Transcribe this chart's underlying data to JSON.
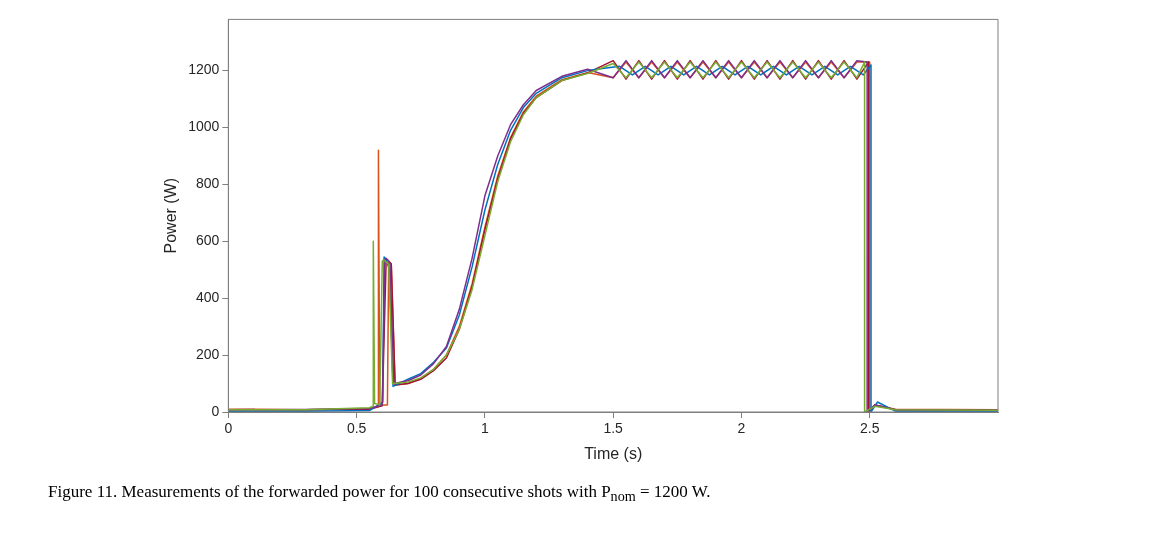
{
  "chart_data": {
    "type": "line",
    "xlabel": "Time (s)",
    "ylabel": "Power (W)",
    "xlim": [
      0,
      3
    ],
    "xticks": [
      0,
      0.5,
      1,
      1.5,
      2,
      2.5
    ],
    "ylim": [
      0,
      1380
    ],
    "yticks": [
      0,
      200,
      400,
      600,
      800,
      1000,
      1200
    ],
    "grid": false,
    "legend": false,
    "marker": "none",
    "line_style": "solid",
    "annotations": [
      "Figure 11. Measurements of the forwarded power for 100 consecutive shots with P$_{nom}$ = 1200 W."
    ],
    "series": [
      {
        "color": "#77ac30",
        "x": [
          0,
          0.3,
          0.55,
          0.565,
          0.565,
          0.57,
          0.59,
          0.6,
          0.605,
          0.625,
          0.64,
          0.7,
          0.75,
          0.8,
          0.85,
          0.9,
          0.95,
          1,
          1.05,
          1.1,
          1.15,
          1.2,
          1.3,
          1.4,
          1.5,
          1.55,
          1.6,
          1.65,
          1.7,
          1.75,
          1.8,
          1.85,
          1.9,
          1.95,
          2,
          2.05,
          2.1,
          2.15,
          2.2,
          2.25,
          2.3,
          2.35,
          2.4,
          2.45,
          2.48,
          2.48,
          2.52,
          2.6,
          3
        ],
        "values": [
          8,
          8,
          15,
          20,
          600,
          30,
          25,
          530,
          535,
          520,
          100,
          105,
          120,
          150,
          200,
          290,
          430,
          620,
          810,
          950,
          1045,
          1105,
          1165,
          1190,
          1225,
          1175,
          1230,
          1175,
          1230,
          1175,
          1230,
          1175,
          1230,
          1175,
          1230,
          1175,
          1230,
          1175,
          1230,
          1175,
          1230,
          1175,
          1230,
          1175,
          1230,
          0,
          20,
          8,
          6
        ]
      },
      {
        "color": "#7e2f8e",
        "x": [
          0,
          0.3,
          0.55,
          0.6,
          0.61,
          0.615,
          0.63,
          0.645,
          0.7,
          0.75,
          0.8,
          0.85,
          0.9,
          0.95,
          1,
          1.05,
          1.1,
          1.15,
          1.2,
          1.3,
          1.4,
          1.5,
          1.55,
          1.6,
          1.65,
          1.7,
          1.75,
          1.8,
          1.85,
          1.9,
          1.95,
          2,
          2.05,
          2.1,
          2.15,
          2.2,
          2.25,
          2.3,
          2.35,
          2.4,
          2.45,
          2.49,
          2.49,
          2.52,
          2.6,
          3
        ],
        "values": [
          8,
          9,
          12,
          25,
          535,
          540,
          525,
          100,
          110,
          130,
          170,
          230,
          360,
          540,
          760,
          900,
          1010,
          1080,
          1130,
          1180,
          1205,
          1175,
          1235,
          1175,
          1235,
          1175,
          1235,
          1175,
          1235,
          1175,
          1235,
          1175,
          1235,
          1175,
          1235,
          1175,
          1235,
          1175,
          1235,
          1175,
          1235,
          1230,
          0,
          25,
          8,
          6
        ]
      },
      {
        "color": "#0072bd",
        "x": [
          0,
          0.3,
          0.55,
          0.602,
          0.607,
          0.614,
          0.628,
          0.642,
          0.7,
          0.75,
          0.8,
          0.85,
          0.9,
          0.95,
          1,
          1.05,
          1.1,
          1.15,
          1.2,
          1.3,
          1.4,
          1.525,
          1.575,
          1.625,
          1.675,
          1.725,
          1.775,
          1.825,
          1.875,
          1.925,
          1.975,
          2.025,
          2.075,
          2.125,
          2.175,
          2.225,
          2.275,
          2.325,
          2.375,
          2.425,
          2.475,
          2.505,
          2.505,
          2.53,
          2.6,
          3
        ],
        "values": [
          3,
          3,
          5,
          35,
          545,
          538,
          500,
          90,
          115,
          135,
          175,
          225,
          340,
          510,
          710,
          870,
          990,
          1070,
          1120,
          1175,
          1200,
          1215,
          1185,
          1215,
          1185,
          1215,
          1185,
          1215,
          1185,
          1215,
          1185,
          1215,
          1185,
          1215,
          1185,
          1215,
          1185,
          1215,
          1185,
          1215,
          1185,
          1220,
          0,
          35,
          3,
          3
        ]
      },
      {
        "color": "#a2142f",
        "x": [
          0,
          0.3,
          0.55,
          0.6,
          0.615,
          0.62,
          0.635,
          0.65,
          0.7,
          0.75,
          0.8,
          0.85,
          0.9,
          0.95,
          1,
          1.05,
          1.1,
          1.15,
          1.2,
          1.3,
          1.4,
          1.5,
          1.55,
          1.6,
          1.65,
          1.7,
          1.75,
          1.8,
          1.85,
          1.9,
          1.95,
          2,
          2.05,
          2.1,
          2.15,
          2.2,
          2.25,
          2.3,
          2.35,
          2.4,
          2.45,
          2.495,
          2.495,
          2.52,
          2.6,
          3
        ],
        "values": [
          8,
          8,
          10,
          22,
          530,
          535,
          520,
          95,
          100,
          115,
          145,
          190,
          290,
          440,
          640,
          820,
          960,
          1050,
          1105,
          1165,
          1192,
          1235,
          1170,
          1235,
          1170,
          1235,
          1170,
          1235,
          1170,
          1235,
          1170,
          1235,
          1170,
          1235,
          1170,
          1235,
          1170,
          1235,
          1170,
          1235,
          1170,
          1230,
          0,
          25,
          8,
          6
        ]
      },
      {
        "color": "#d95319",
        "x": [
          0,
          0.3,
          0.55,
          0.585,
          0.585,
          0.59,
          0.6,
          0.62,
          0.625,
          0.635,
          0.65,
          0.7,
          0.75,
          0.8,
          0.85,
          0.9,
          0.95,
          1,
          1.05,
          1.1,
          1.15,
          1.2,
          1.3,
          1.4,
          1.5,
          1.55,
          1.6,
          1.65,
          1.7,
          1.75,
          1.8,
          1.85,
          1.9,
          1.95,
          2,
          2.05,
          2.1,
          2.15,
          2.2,
          2.25,
          2.3,
          2.35,
          2.4,
          2.45,
          2.5,
          2.5,
          2.52,
          2.6,
          3
        ],
        "values": [
          10,
          8,
          12,
          20,
          920,
          25,
          25,
          25,
          530,
          520,
          95,
          100,
          118,
          150,
          200,
          300,
          450,
          650,
          830,
          965,
          1055,
          1110,
          1168,
          1193,
          1175,
          1230,
          1175,
          1230,
          1175,
          1230,
          1175,
          1230,
          1175,
          1230,
          1175,
          1230,
          1175,
          1230,
          1175,
          1230,
          1175,
          1230,
          1175,
          1230,
          1230,
          0,
          25,
          10,
          8
        ]
      }
    ]
  }
}
